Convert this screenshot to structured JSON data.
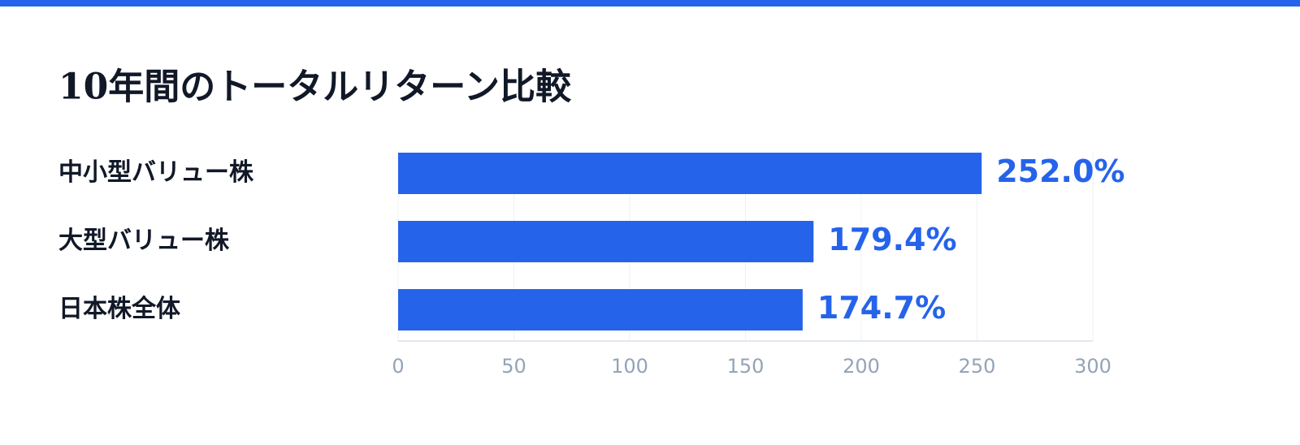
{
  "chart_data": {
    "type": "bar",
    "title": "10年間のトータルリターン比較",
    "categories": [
      "中小型バリュー株",
      "大型バリュー株",
      "日本株全体"
    ],
    "values": [
      252.0,
      179.4,
      174.7
    ],
    "value_labels": [
      "252.0%",
      "179.4%",
      "174.7%"
    ],
    "color": "#2563eb",
    "xlim": [
      0,
      300
    ],
    "xticks": [
      0,
      50,
      100,
      150,
      200,
      250,
      300
    ],
    "grid": true
  }
}
